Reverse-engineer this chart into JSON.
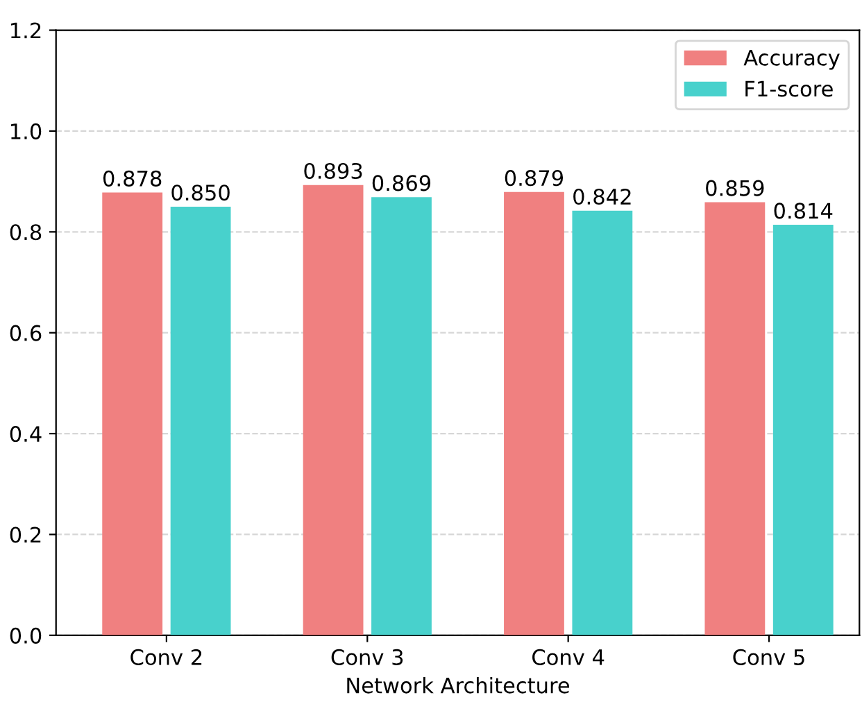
{
  "chart_data": {
    "type": "bar",
    "xlabel": "Network Architecture",
    "categories": [
      "Conv 2",
      "Conv 3",
      "Conv 4",
      "Conv 5"
    ],
    "series": [
      {
        "name": "Accuracy",
        "color": "#f08080",
        "values": [
          0.878,
          0.893,
          0.879,
          0.859
        ],
        "value_labels": [
          "0.878",
          "0.893",
          "0.879",
          "0.859"
        ]
      },
      {
        "name": "F1-score",
        "color": "#48d1cc",
        "values": [
          0.85,
          0.869,
          0.842,
          0.814
        ],
        "value_labels": [
          "0.850",
          "0.869",
          "0.842",
          "0.814"
        ]
      }
    ],
    "ylim": [
      0,
      1.2
    ],
    "yticks": [
      {
        "value": 0,
        "label": "0.0"
      },
      {
        "value": 0.2,
        "label": "0.2"
      },
      {
        "value": 0.4,
        "label": "0.4"
      },
      {
        "value": 0.6,
        "label": "0.6"
      },
      {
        "value": 0.8,
        "label": "0.8"
      },
      {
        "value": 1.0,
        "label": "1.0"
      },
      {
        "value": 1.2,
        "label": "1.2"
      }
    ],
    "grid": "y",
    "legend": "top right"
  }
}
